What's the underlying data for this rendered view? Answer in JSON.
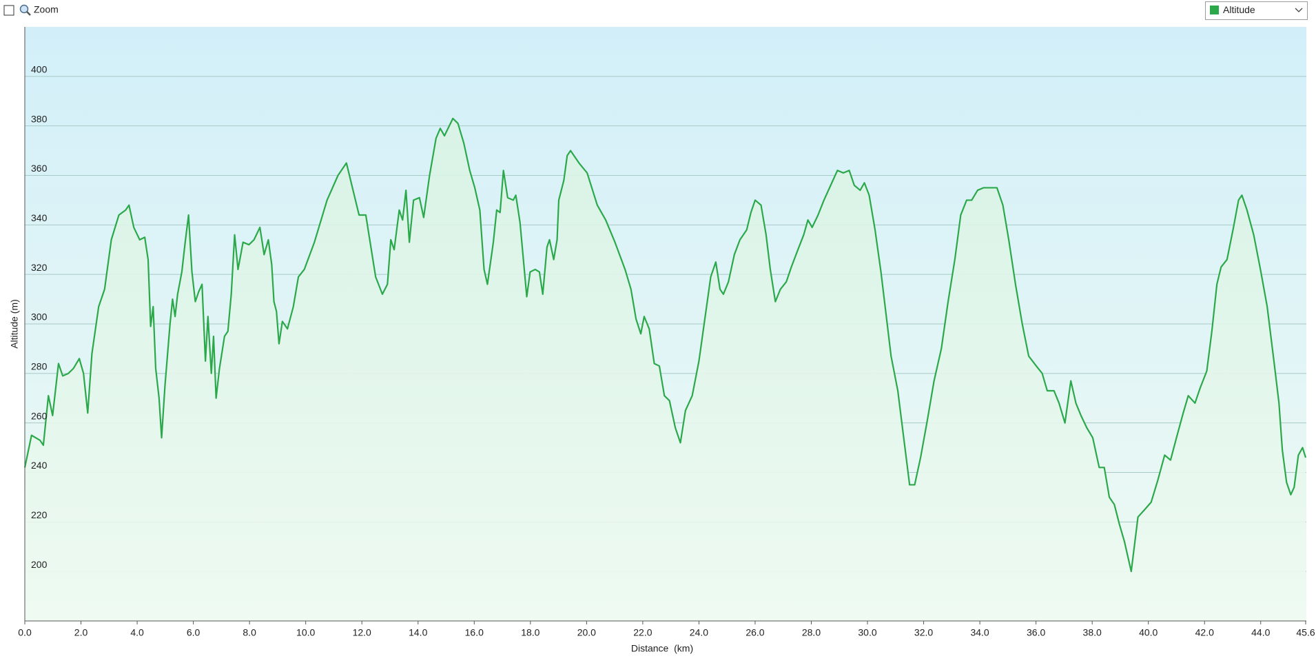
{
  "ui": {
    "zoom_label": "Zoom"
  },
  "chart_data": {
    "type": "line",
    "x_label": "Distance  (km)",
    "y_label": "Altitude (m)",
    "xlim": [
      0,
      45.6
    ],
    "ylim": [
      180,
      420
    ],
    "xticks": [
      {
        "value": 0,
        "label": "0.0"
      },
      {
        "value": 2,
        "label": "2.0"
      },
      {
        "value": 4,
        "label": "4.0"
      },
      {
        "value": 6,
        "label": "6.0"
      },
      {
        "value": 8,
        "label": "8.0"
      },
      {
        "value": 10,
        "label": "10.0"
      },
      {
        "value": 12,
        "label": "12.0"
      },
      {
        "value": 14,
        "label": "14.0"
      },
      {
        "value": 16,
        "label": "16.0"
      },
      {
        "value": 18,
        "label": "18.0"
      },
      {
        "value": 20,
        "label": "20.0"
      },
      {
        "value": 22,
        "label": "22.0"
      },
      {
        "value": 24,
        "label": "24.0"
      },
      {
        "value": 26,
        "label": "26.0"
      },
      {
        "value": 28,
        "label": "28.0"
      },
      {
        "value": 30,
        "label": "30.0"
      },
      {
        "value": 32,
        "label": "32.0"
      },
      {
        "value": 34,
        "label": "34.0"
      },
      {
        "value": 36,
        "label": "36.0"
      },
      {
        "value": 38,
        "label": "38.0"
      },
      {
        "value": 40,
        "label": "40.0"
      },
      {
        "value": 42,
        "label": "42.0"
      },
      {
        "value": 44,
        "label": "44.0"
      },
      45.6
    ],
    "yticks": [
      200,
      220,
      240,
      260,
      280,
      300,
      320,
      340,
      360,
      380,
      400
    ],
    "grid": true,
    "x": [
      0,
      0.24,
      0.54,
      0.66,
      0.84,
      0.99,
      1.2,
      1.35,
      1.55,
      1.73,
      1.94,
      2.09,
      2.24,
      2.39,
      2.63,
      2.84,
      3.08,
      3.35,
      3.59,
      3.71,
      3.88,
      4.09,
      4.27,
      4.39,
      4.48,
      4.57,
      4.66,
      4.78,
      4.87,
      4.99,
      5.17,
      5.26,
      5.35,
      5.44,
      5.59,
      5.71,
      5.83,
      5.95,
      6.07,
      6.19,
      6.31,
      6.43,
      6.52,
      6.64,
      6.72,
      6.81,
      6.93,
      7.11,
      7.23,
      7.35,
      7.47,
      7.59,
      7.77,
      7.98,
      8.16,
      8.37,
      8.52,
      8.67,
      8.79,
      8.87,
      8.96,
      9.05,
      9.17,
      9.35,
      9.56,
      9.74,
      9.95,
      10.31,
      10.76,
      11.15,
      11.45,
      11.9,
      12.14,
      12.49,
      12.73,
      12.91,
      13.03,
      13.15,
      13.33,
      13.45,
      13.57,
      13.69,
      13.84,
      14.05,
      14.2,
      14.41,
      14.64,
      14.79,
      14.94,
      15.24,
      15.42,
      15.63,
      15.84,
      16.02,
      16.2,
      16.35,
      16.47,
      16.68,
      16.8,
      16.92,
      17.04,
      17.19,
      17.39,
      17.48,
      17.63,
      17.87,
      17.99,
      18.17,
      18.32,
      18.44,
      18.59,
      18.68,
      18.83,
      18.95,
      19.01,
      19.19,
      19.31,
      19.43,
      19.73,
      20.02,
      20.38,
      20.68,
      21.01,
      21.37,
      21.58,
      21.76,
      21.93,
      22.05,
      22.23,
      22.41,
      22.59,
      22.77,
      22.95,
      23.16,
      23.34,
      23.52,
      23.76,
      24.0,
      24.21,
      24.42,
      24.6,
      24.75,
      24.87,
      25.05,
      25.26,
      25.46,
      25.7,
      25.85,
      26.0,
      26.21,
      26.39,
      26.54,
      26.72,
      26.9,
      27.11,
      27.29,
      27.49,
      27.73,
      27.88,
      28.03,
      28.24,
      28.45,
      28.69,
      28.93,
      29.14,
      29.35,
      29.53,
      29.74,
      29.89,
      30.06,
      30.27,
      30.48,
      30.66,
      30.84,
      31.08,
      31.29,
      31.5,
      31.68,
      31.89,
      32.13,
      32.37,
      32.63,
      32.87,
      33.11,
      33.32,
      33.53,
      33.71,
      33.92,
      34.13,
      34.61,
      34.82,
      35.03,
      35.27,
      35.51,
      35.74,
      36.01,
      36.22,
      36.4,
      36.64,
      36.82,
      37.03,
      37.24,
      37.42,
      37.6,
      37.81,
      38.02,
      38.25,
      38.43,
      38.61,
      38.79,
      38.97,
      39.15,
      39.39,
      39.63,
      39.87,
      40.1,
      40.34,
      40.58,
      40.79,
      41.0,
      41.24,
      41.42,
      41.66,
      41.84,
      42.08,
      42.26,
      42.44,
      42.59,
      42.8,
      43.03,
      43.21,
      43.33,
      43.51,
      43.75,
      43.99,
      44.23,
      44.47,
      44.65,
      44.77,
      44.92,
      45.07,
      45.19,
      45.34,
      45.49,
      45.6
    ],
    "series": [
      {
        "name": "Altitude",
        "color": "#2aa84a",
        "values": [
          242,
          255,
          253,
          251,
          271,
          263,
          284,
          279,
          280,
          282,
          286,
          280,
          264,
          288,
          307,
          314,
          334,
          344,
          346,
          348,
          339,
          334,
          335,
          326,
          299,
          307,
          282,
          270,
          254,
          275,
          300,
          310,
          303,
          312,
          321,
          333,
          344,
          321,
          309,
          313,
          316,
          285,
          303,
          280,
          295,
          270,
          282,
          295,
          297,
          312,
          336,
          322,
          333,
          332,
          334,
          339,
          328,
          334,
          324,
          309,
          305,
          292,
          301,
          298,
          307,
          319,
          322,
          333,
          350,
          360,
          365,
          344,
          344,
          319,
          312,
          316,
          334,
          330,
          346,
          342,
          354,
          333,
          350,
          351,
          343,
          360,
          375,
          379,
          376,
          383,
          381,
          373,
          362,
          355,
          346,
          322,
          316,
          333,
          346,
          345,
          362,
          351,
          350,
          352,
          341,
          311,
          321,
          322,
          321,
          312,
          331,
          334,
          326,
          334,
          350,
          358,
          368,
          370,
          365,
          361,
          348,
          342,
          333,
          322,
          314,
          302,
          296,
          303,
          298,
          284,
          283,
          271,
          269,
          258,
          252,
          265,
          271,
          285,
          302,
          319,
          325,
          314,
          312,
          317,
          328,
          334,
          338,
          345,
          350,
          348,
          336,
          322,
          309,
          314,
          317,
          323,
          329,
          336,
          342,
          339,
          344,
          350,
          356,
          362,
          361,
          362,
          356,
          354,
          357,
          352,
          338,
          321,
          304,
          287,
          273,
          254,
          235,
          235,
          246,
          261,
          277,
          290,
          309,
          326,
          344,
          350,
          350,
          354,
          355,
          355,
          348,
          334,
          316,
          300,
          287,
          283,
          280,
          273,
          273,
          268,
          260,
          277,
          268,
          263,
          258,
          254,
          242,
          242,
          230,
          227,
          219,
          212,
          200,
          222,
          225,
          228,
          237,
          247,
          245,
          254,
          264,
          271,
          268,
          274,
          281,
          297,
          316,
          323,
          326,
          339,
          350,
          352,
          346,
          336,
          322,
          307,
          285,
          268,
          249,
          236,
          231,
          234,
          247,
          250,
          246
        ]
      }
    ]
  }
}
